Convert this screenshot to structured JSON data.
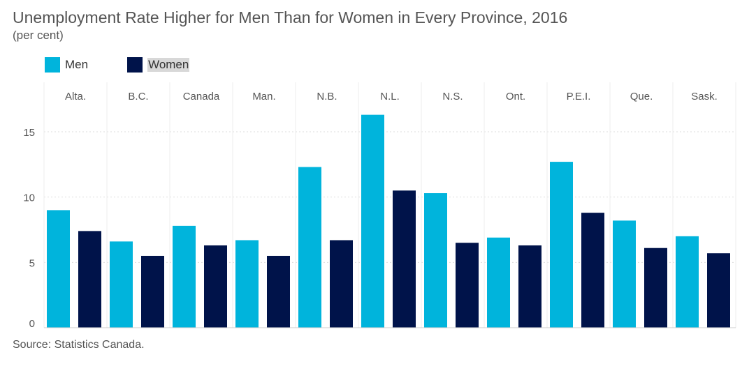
{
  "title": "Unemployment Rate Higher for Men Than for Women in Every Province, 2016",
  "subtitle": "(per cent)",
  "source": "Source: Statistics Canada.",
  "legend": [
    {
      "label": "Men",
      "color": "#00b4dc"
    },
    {
      "label": "Women",
      "color": "#00134a"
    }
  ],
  "chart_data": {
    "type": "bar",
    "categories": [
      "Alta.",
      "B.C.",
      "Canada",
      "Man.",
      "N.B.",
      "N.L.",
      "N.S.",
      "Ont.",
      "P.E.I.",
      "Que.",
      "Sask."
    ],
    "series": [
      {
        "name": "Men",
        "color": "#00b4dc",
        "values": [
          9.0,
          6.6,
          7.8,
          6.7,
          12.3,
          16.3,
          10.3,
          6.9,
          12.7,
          8.2,
          7.0
        ]
      },
      {
        "name": "Women",
        "color": "#00134a",
        "values": [
          7.4,
          5.5,
          6.3,
          5.5,
          6.7,
          10.5,
          6.5,
          6.3,
          8.8,
          6.1,
          5.7
        ]
      }
    ],
    "yticks": [
      0,
      5,
      10,
      15
    ],
    "ylim": [
      0,
      17.5
    ],
    "grid": true,
    "layout": "faceted by category"
  }
}
